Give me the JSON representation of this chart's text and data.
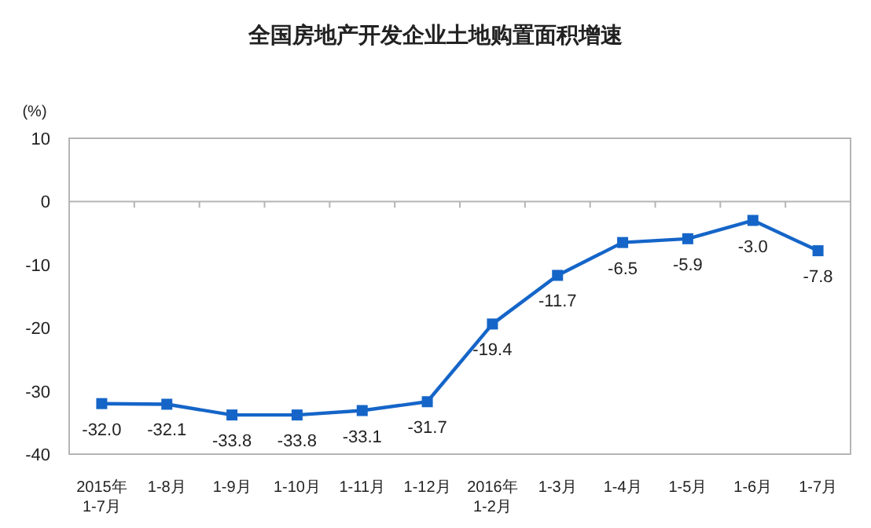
{
  "chart_data": {
    "type": "line",
    "title": "全国房地产开发企业土地购置面积增速",
    "ylabel": "(%)",
    "categories": [
      "2015年\n1-7月",
      "1-8月",
      "1-9月",
      "1-10月",
      "1-11月",
      "1-12月",
      "2016年\n1-2月",
      "1-3月",
      "1-4月",
      "1-5月",
      "1-6月",
      "1-7月"
    ],
    "series": [
      {
        "color": "#1565c8",
        "values": [
          -32.0,
          -32.1,
          -33.8,
          -33.8,
          -33.1,
          -31.7,
          -19.4,
          -11.7,
          -6.5,
          -5.9,
          -3.0,
          -7.8
        ],
        "value_labels": [
          "-32.0",
          "-32.1",
          "-33.8",
          "-33.8",
          "-33.1",
          "-31.7",
          "-19.4",
          "-11.7",
          "-6.5",
          "-5.9",
          "-3.0",
          "-7.8"
        ]
      }
    ],
    "ylim": [
      -40,
      10
    ],
    "yticks": [
      -40,
      -30,
      -20,
      -10,
      0,
      10
    ],
    "marker": "square"
  }
}
